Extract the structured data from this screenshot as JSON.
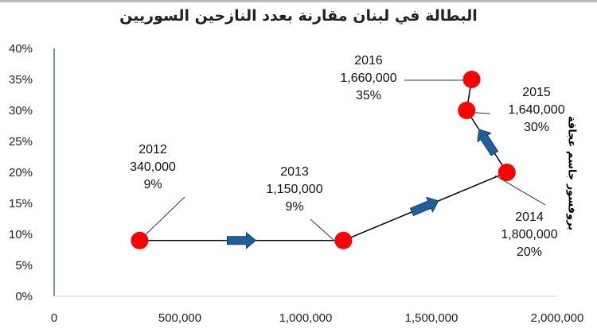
{
  "chart_data": {
    "type": "scatter",
    "title": "البطالة في لبنان مقارنة بعدد النازحين السوريين",
    "xlabel": "",
    "ylabel": "",
    "xlim": [
      0,
      2000000
    ],
    "ylim": [
      0,
      40
    ],
    "xticks": [
      "0",
      "500,000",
      "1,000,000",
      "1,500,000",
      "2,000,000"
    ],
    "yticks": [
      "0%",
      "5%",
      "10%",
      "15%",
      "20%",
      "25%",
      "30%",
      "35%",
      "40%"
    ],
    "points": [
      {
        "year": "2012",
        "x": 340000,
        "y": 9,
        "xlabel": "340,000",
        "ylabel": "9%"
      },
      {
        "year": "2013",
        "x": 1150000,
        "y": 9,
        "xlabel": "1,150,000",
        "ylabel": "9%"
      },
      {
        "year": "2014",
        "x": 1800000,
        "y": 20,
        "xlabel": "1,800,000",
        "ylabel": "20%"
      },
      {
        "year": "2015",
        "x": 1640000,
        "y": 30,
        "xlabel": "1,640,000",
        "ylabel": "30%"
      },
      {
        "year": "2016",
        "x": 1660000,
        "y": 35,
        "xlabel": "1,660,000",
        "ylabel": "35%"
      }
    ],
    "source": "بروفسور جاسم عجاقة",
    "colors": {
      "point": "#ff0000",
      "arrow": "#1f5fa0",
      "line": "#000000"
    }
  }
}
